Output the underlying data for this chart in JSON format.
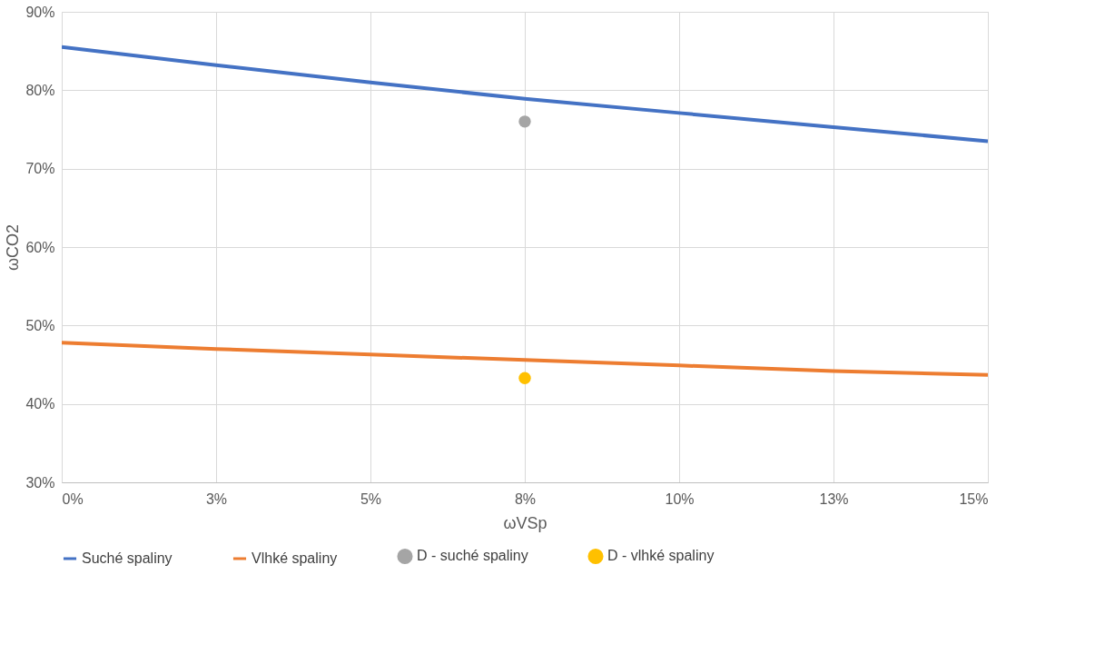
{
  "chart_data": {
    "type": "line",
    "xlabel": "ωVSp",
    "ylabel": "ωCO2",
    "xlim": [
      0,
      15
    ],
    "ylim": [
      30,
      90
    ],
    "xticks": [
      {
        "value": 0,
        "label": "0%"
      },
      {
        "value": 2.5,
        "label": "3%"
      },
      {
        "value": 5,
        "label": "5%"
      },
      {
        "value": 7.5,
        "label": "8%"
      },
      {
        "value": 10,
        "label": "10%"
      },
      {
        "value": 12.5,
        "label": "13%"
      },
      {
        "value": 15,
        "label": "15%"
      }
    ],
    "yticks": [
      {
        "value": 30,
        "label": "30%"
      },
      {
        "value": 40,
        "label": "40%"
      },
      {
        "value": 50,
        "label": "50%"
      },
      {
        "value": 60,
        "label": "60%"
      },
      {
        "value": 70,
        "label": "70%"
      },
      {
        "value": 80,
        "label": "80%"
      },
      {
        "value": 90,
        "label": "90%"
      }
    ],
    "grid": true,
    "legend": "bottom",
    "series": [
      {
        "name": "Suché spaliny",
        "color": "#4472c4",
        "x": [
          0,
          2.5,
          5,
          7.5,
          10,
          12.5,
          15
        ],
        "values": [
          85.5,
          83.2,
          81.0,
          78.9,
          77.1,
          75.3,
          73.5
        ]
      },
      {
        "name": "Vlhké spaliny",
        "color": "#ed7d31",
        "x": [
          0,
          2.5,
          5,
          7.5,
          10,
          12.5,
          15
        ],
        "values": [
          47.8,
          47.0,
          46.3,
          45.6,
          44.9,
          44.2,
          43.7
        ]
      },
      {
        "name": "D - suché spaliny",
        "type": "scatter",
        "marker": "circle",
        "color": "#a5a5a5",
        "x": [
          7.5
        ],
        "values": [
          76.0
        ]
      },
      {
        "name": "D - vlhké spaliny",
        "type": "scatter",
        "marker": "circle",
        "color": "#ffc000",
        "x": [
          7.5
        ],
        "values": [
          43.3
        ]
      }
    ]
  }
}
